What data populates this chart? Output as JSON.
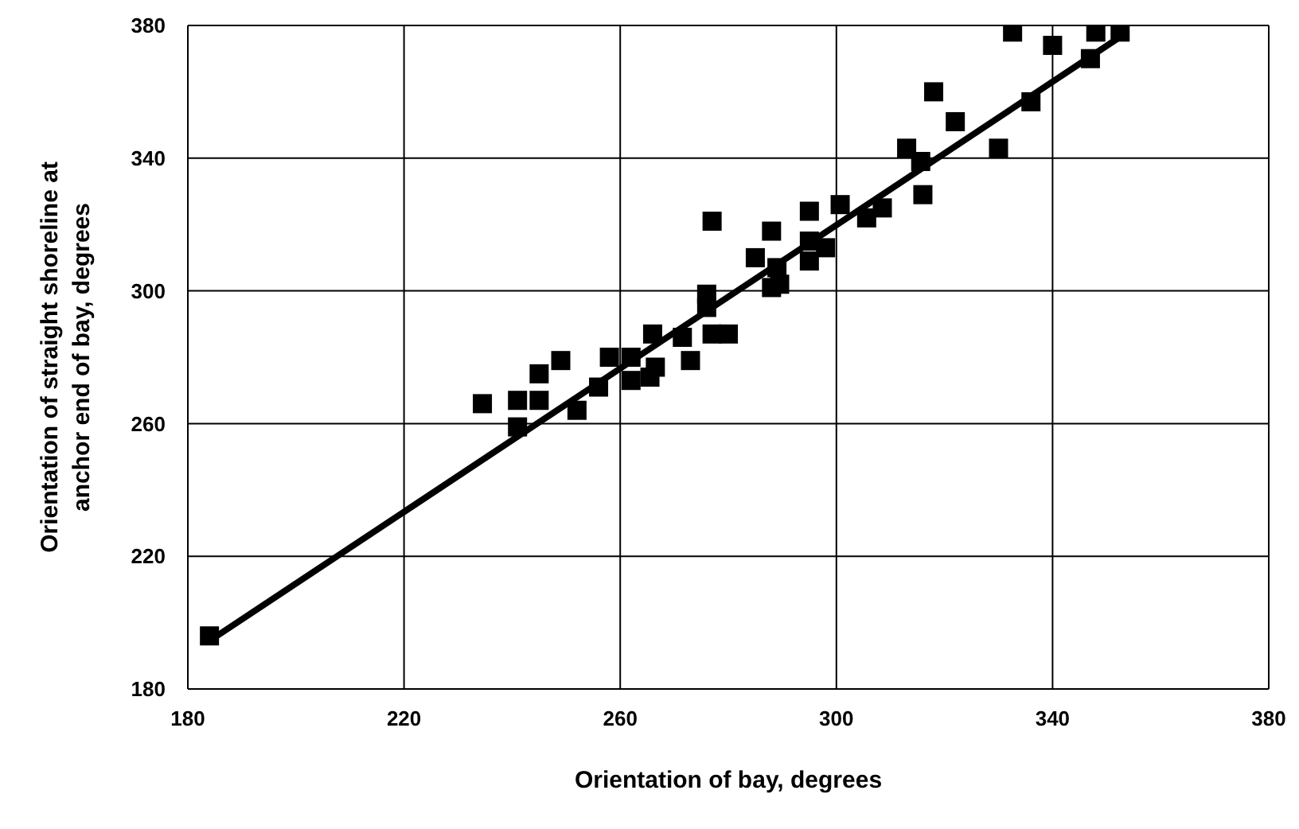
{
  "chart_data": {
    "type": "scatter",
    "xlabel": "Orientation of bay, degrees",
    "ylabel": "Orientation of straight shoreline at anchor end of bay, degrees",
    "xlim": [
      180,
      380
    ],
    "xticks": [
      180,
      220,
      260,
      300,
      340,
      380
    ],
    "ylim": [
      180,
      380
    ],
    "yticks": [
      180,
      220,
      260,
      300,
      340,
      380
    ],
    "grid": true,
    "legend": false,
    "series": [
      {
        "marker": "square",
        "color": "#000000",
        "x": [
          184,
          234.5,
          241,
          241,
          245,
          245,
          249,
          252,
          256,
          258,
          262,
          262,
          265.5,
          266.5,
          266,
          271.5,
          273,
          277,
          280,
          276,
          276,
          277,
          285,
          288,
          289,
          288,
          289.5,
          295,
          295,
          295,
          298,
          300.7,
          305.6,
          308.5,
          313,
          315.6,
          316,
          318,
          322,
          330,
          332.6,
          336,
          340,
          347,
          348,
          352.5
        ],
        "values": [
          196,
          266,
          259,
          267,
          267,
          275,
          279,
          264,
          271,
          280,
          280,
          273,
          274,
          277,
          287,
          286,
          279,
          287,
          287,
          299,
          295,
          321,
          310,
          301,
          307,
          318,
          302,
          324,
          315,
          309,
          313,
          326,
          322,
          325,
          343,
          339,
          329,
          360,
          351,
          343,
          378,
          357,
          374,
          370,
          378,
          378
        ]
      },
      {
        "type": "line",
        "marker": "none",
        "color": "#000000",
        "x": [
          184,
          352
        ],
        "values": [
          194.5,
          376
        ]
      }
    ]
  }
}
